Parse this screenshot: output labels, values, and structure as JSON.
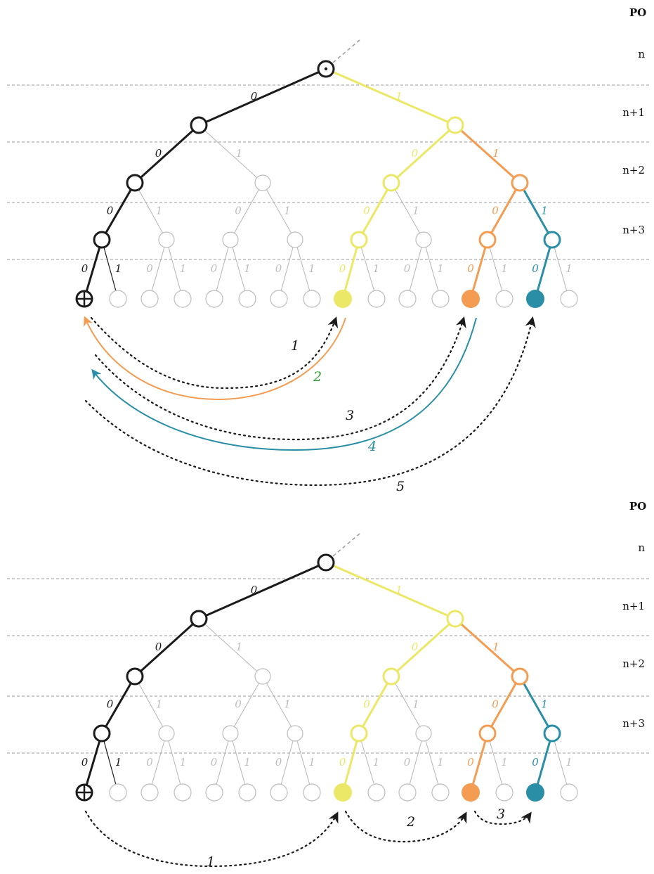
{
  "colors": {
    "black": "#1b1b1b",
    "gray": "#b5b5b5",
    "yellow": "#ebe868",
    "orange": "#f39c52",
    "teal": "#2a8ea6",
    "green": "#2e9e2e",
    "dashed_guide": "#9a9a9a"
  },
  "header_label": "PO",
  "levels": [
    "n",
    "n+1",
    "n+2",
    "n+3"
  ],
  "edge_labels": {
    "left": "0",
    "right": "1"
  },
  "icons": {
    "root_top": "circle-dot-icon",
    "root_bottom": "empty-circle-icon",
    "start": "circle-plus-icon"
  },
  "top_diagram": {
    "steps": [
      {
        "label": "1",
        "style": "dotted",
        "from": "start",
        "to": "yellow-leaf"
      },
      {
        "label": "2",
        "style": "solid-orange",
        "from": "yellow-leaf",
        "to": "start"
      },
      {
        "label": "3",
        "style": "dotted",
        "from": "start",
        "to": "orange-leaf"
      },
      {
        "label": "4",
        "style": "solid-teal",
        "from": "orange-leaf",
        "to": "start"
      },
      {
        "label": "5",
        "style": "dotted",
        "from": "start",
        "to": "teal-leaf"
      }
    ]
  },
  "bottom_diagram": {
    "steps": [
      {
        "label": "1",
        "style": "dotted",
        "from": "start",
        "to": "yellow-leaf"
      },
      {
        "label": "2",
        "style": "dotted",
        "from": "yellow-leaf",
        "to": "orange-leaf"
      },
      {
        "label": "3",
        "style": "dotted",
        "from": "orange-leaf",
        "to": "teal-leaf"
      }
    ]
  }
}
